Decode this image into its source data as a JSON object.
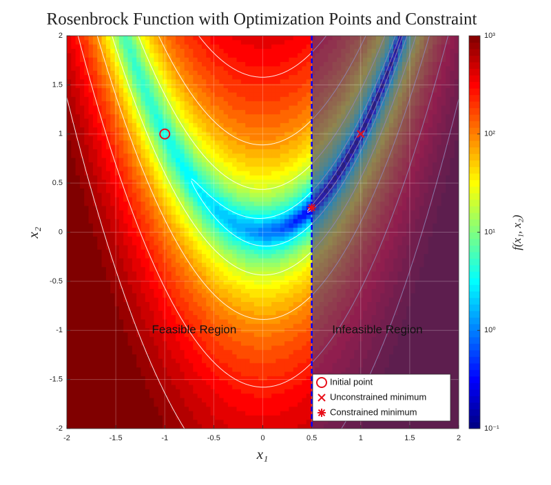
{
  "chart_data": {
    "type": "contour",
    "title": "Rosenbrock Function with Optimization Points and Constraint",
    "x_label": "x₁",
    "y_label": "x₂",
    "xlim": [
      -2,
      2
    ],
    "ylim": [
      -2,
      2
    ],
    "xticks": [
      -2,
      -1.5,
      -1,
      -0.5,
      0,
      0.5,
      1,
      1.5,
      2
    ],
    "yticks": [
      -2,
      -1.5,
      -1,
      -0.5,
      0,
      0.5,
      1,
      1.5,
      2
    ],
    "grid": true,
    "colorbar": {
      "label": "f(x₁, x₂)",
      "scale": "log",
      "colormap": "jet",
      "lim": [
        0.1,
        1000
      ],
      "ticks": [
        {
          "value": 0.1,
          "label": "10⁻¹"
        },
        {
          "value": 1,
          "label": "10⁰"
        },
        {
          "value": 10,
          "label": "10¹"
        },
        {
          "value": 100,
          "label": "10²"
        },
        {
          "value": 1000,
          "label": "10³"
        }
      ]
    },
    "constraint": {
      "x": 0.5,
      "color": "#0000ff"
    },
    "regions": [
      "Feasible Region",
      "Infeasible Region"
    ],
    "legend": "lower right",
    "series": [
      {
        "name": "Initial point",
        "marker": "circle",
        "color": "#e8101a",
        "x": [
          -1
        ],
        "values": [
          1
        ]
      },
      {
        "name": "Unconstrained minimum",
        "marker": "x",
        "color": "#e8101a",
        "x": [
          1
        ],
        "values": [
          1
        ]
      },
      {
        "name": "Constrained minimum",
        "marker": "asterisk",
        "color": "#e8101a",
        "x": [
          0.5
        ],
        "values": [
          0.25
        ]
      }
    ]
  }
}
